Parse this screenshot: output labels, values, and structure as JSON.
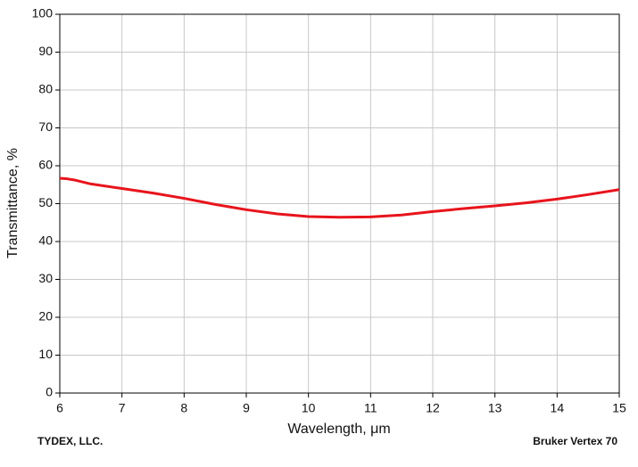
{
  "chart_data": {
    "type": "line",
    "x_label": "Wavelength, μm",
    "y_label": "Transmittance, %",
    "footer_left": "TYDEX, LLC.",
    "footer_right": "Bruker Vertex 70",
    "x": [
      6.0,
      6.1,
      6.25,
      6.5,
      7,
      7.5,
      8,
      8.5,
      9,
      9.5,
      10,
      10.5,
      11,
      11.5,
      12,
      12.5,
      13,
      13.5,
      14,
      14.5,
      15
    ],
    "series": [
      {
        "color": "#e8141c",
        "values": [
          56.7,
          56.6,
          56.2,
          55.2,
          54.0,
          52.8,
          51.4,
          49.8,
          48.4,
          47.3,
          46.6,
          46.4,
          46.5,
          47.0,
          47.9,
          48.7,
          49.4,
          50.2,
          51.2,
          52.4,
          53.7
        ]
      }
    ],
    "xlim": [
      6,
      15
    ],
    "xticks": [
      6,
      7,
      8,
      9,
      10,
      11,
      12,
      13,
      14,
      15
    ],
    "ylim": [
      0,
      100
    ],
    "yticks": [
      0,
      10,
      20,
      30,
      40,
      50,
      60,
      70,
      80,
      90,
      100
    ],
    "grid": true
  }
}
